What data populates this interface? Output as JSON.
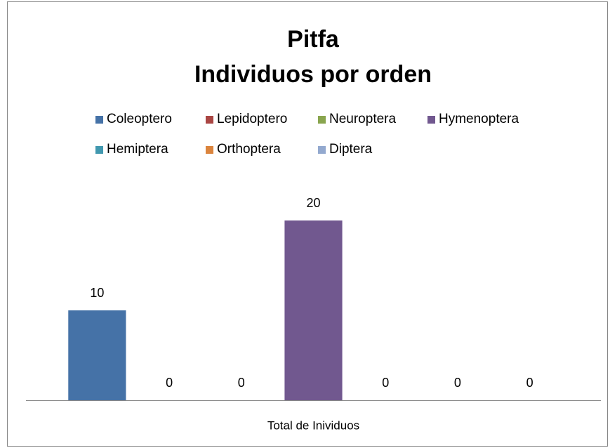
{
  "chart_data": {
    "type": "bar",
    "title": "Pitfa",
    "subtitle": "Individuos por orden",
    "categories": [
      "Total de Inividuos"
    ],
    "series": [
      {
        "name": "Coleoptero",
        "color": "#4572a7",
        "values": [
          10
        ]
      },
      {
        "name": "Lepidoptero",
        "color": "#aa4643",
        "values": [
          0
        ]
      },
      {
        "name": "Neuroptera",
        "color": "#89a54e",
        "values": [
          0
        ]
      },
      {
        "name": "Hymenoptera",
        "color": "#71588f",
        "values": [
          20
        ]
      },
      {
        "name": "Hemiptera",
        "color": "#4198af",
        "values": [
          0
        ]
      },
      {
        "name": "Orthoptera",
        "color": "#db843d",
        "values": [
          0
        ]
      },
      {
        "name": "Diptera",
        "color": "#93a9cf",
        "values": [
          0
        ]
      }
    ],
    "ylim": [
      0,
      25
    ],
    "legend": "top",
    "data_labels": true
  }
}
